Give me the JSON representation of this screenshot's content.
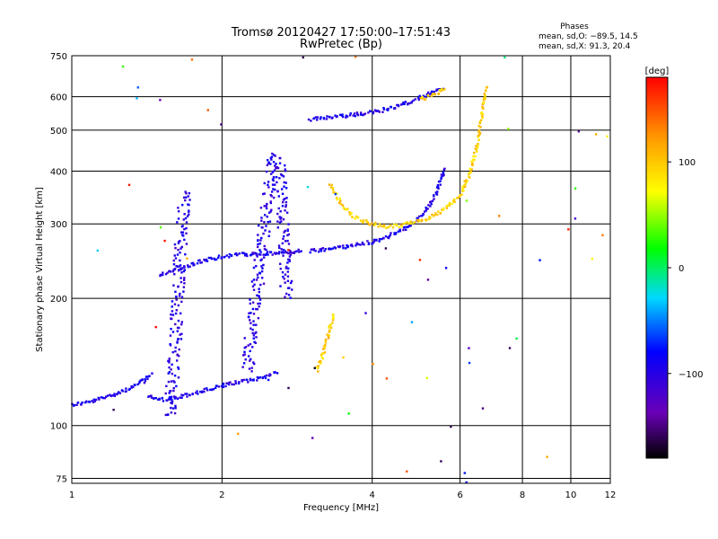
{
  "chart_data": {
    "type": "scatter",
    "title": "Tromsø 20120427 17:50:00–17:51:43",
    "subtitle": "RwPretec (Bp)",
    "xlabel": "Frequency [MHz]",
    "ylabel": "Stationary phase Virtual Height [km]",
    "x_scale": "log",
    "y_scale": "log",
    "xlim": [
      1,
      12
    ],
    "ylim": [
      73,
      750
    ],
    "x_ticks": [
      1,
      2,
      4,
      6,
      8,
      10,
      12
    ],
    "y_ticks": [
      75,
      100,
      200,
      300,
      400,
      500,
      600,
      750
    ],
    "grid": true,
    "phases": {
      "heading": "Phases",
      "line1": "mean, sd,O:  −89.5, 14.5",
      "line2": "mean, sd,X:  91.3, 20.4"
    },
    "colorbar": {
      "label": "[deg]",
      "range": [
        -180,
        180
      ],
      "ticks": [
        100,
        0,
        -100
      ],
      "tick_labels": [
        "100",
        "0",
        "−100"
      ],
      "colormap": "rainbow"
    },
    "series": [
      {
        "mode": "O",
        "phase_deg": -95,
        "segments": [
          {
            "x": [
              1.0,
              1.1,
              1.2,
              1.3,
              1.4,
              1.45
            ],
            "y": [
              112,
              114,
              118,
              122,
              128,
              133
            ]
          },
          {
            "x": [
              1.42,
              1.5,
              1.6,
              1.7,
              1.8,
              1.9,
              2.0,
              2.1,
              2.2,
              2.3,
              2.4,
              2.5,
              2.6
            ],
            "y": [
              117,
              115,
              116,
              118,
              120,
              122,
              124,
              126,
              127,
              128,
              130,
              132,
              134
            ]
          },
          {
            "x": [
              1.5,
              1.6,
              1.7,
              1.8,
              1.9,
              2.0,
              2.1,
              2.2,
              2.3,
              2.4,
              2.5,
              2.6,
              2.7,
              2.8,
              2.9
            ],
            "y": [
              228,
              232,
              238,
              244,
              248,
              251,
              253,
              254,
              254,
              255,
              255,
              256,
              257,
              258,
              260
            ]
          },
          {
            "x": [
              3.0,
              3.3,
              3.6,
              4.0,
              4.3,
              4.6,
              4.9,
              5.2,
              5.4,
              5.6
            ],
            "y": [
              258,
              262,
              266,
              272,
              280,
              290,
              305,
              330,
              360,
              410
            ]
          },
          {
            "x": [
              3.0,
              3.3,
              3.6,
              4.0,
              4.4,
              4.8,
              5.2,
              5.4,
              5.6
            ],
            "y": [
              530,
              535,
              542,
              550,
              565,
              585,
              610,
              625,
              630
            ]
          }
        ]
      },
      {
        "mode": "O-spread",
        "phase_deg": -100,
        "segments": [
          {
            "x": [
              1.58,
              1.6,
              1.62,
              1.64,
              1.66,
              1.68,
              1.7
            ],
            "y": [
              105,
              140,
              180,
              230,
              280,
              330,
              360
            ]
          },
          {
            "x": [
              2.25,
              2.3,
              2.35,
              2.4,
              2.45,
              2.5,
              2.55,
              2.6,
              2.65,
              2.7
            ],
            "y": [
              135,
              170,
              210,
              260,
              320,
              380,
              440,
              410,
              300,
              200
            ]
          }
        ]
      },
      {
        "mode": "X",
        "phase_deg": 95,
        "segments": [
          {
            "x": [
              3.3,
              3.5,
              3.7,
              4.0,
              4.3,
              4.6,
              5.0,
              5.5,
              6.0,
              6.3,
              6.5,
              6.6,
              6.7,
              6.8
            ],
            "y": [
              370,
              330,
              310,
              300,
              295,
              298,
              305,
              320,
              350,
              400,
              460,
              520,
              580,
              640
            ]
          },
          {
            "x": [
              3.1,
              3.15,
              3.2,
              3.25,
              3.3,
              3.35
            ],
            "y": [
              135,
              142,
              150,
              160,
              172,
              185
            ]
          },
          {
            "x": [
              5.0,
              5.2,
              5.4,
              5.6
            ],
            "y": [
              590,
              600,
              610,
              630
            ]
          }
        ]
      }
    ],
    "scatter_noise": {
      "count": 60,
      "phase_range": [
        -180,
        180
      ]
    }
  }
}
